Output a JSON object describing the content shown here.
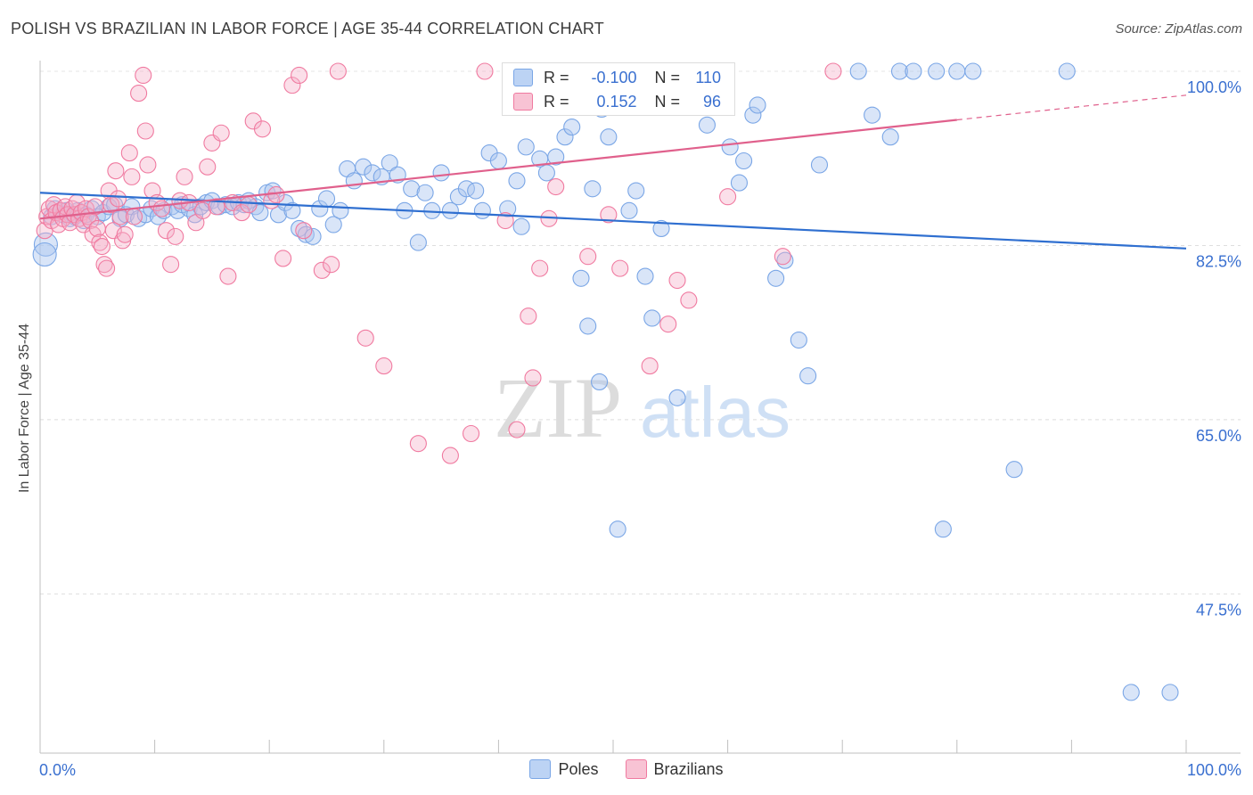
{
  "title": "POLISH VS BRAZILIAN IN LABOR FORCE | AGE 35-44 CORRELATION CHART",
  "source": "Source: ZipAtlas.com",
  "watermark": {
    "zip": "ZIP",
    "atlas": "atlas"
  },
  "legend_box": {
    "rows": [
      {
        "r_label": "R =",
        "r_value": "-0.100",
        "n_label": "N =",
        "n_value": "110",
        "color": "#7aa6e6"
      },
      {
        "r_label": "R =",
        "r_value": "0.152",
        "n_label": "N =",
        "n_value": "96",
        "color": "#f07aa0"
      }
    ]
  },
  "chart_data": {
    "type": "scatter",
    "title": "POLISH VS BRAZILIAN IN LABOR FORCE | AGE 35-44 CORRELATION CHART",
    "xlabel": "",
    "ylabel": "In Labor Force | Age 35-44",
    "xlim": [
      0,
      100
    ],
    "ylim": [
      31.5,
      100
    ],
    "x_tick_labels": [
      "0.0%",
      "100.0%"
    ],
    "y_ticks": [
      100,
      82.5,
      65,
      47.5
    ],
    "y_tick_labels": [
      "100.0%",
      "82.5%",
      "65.0%",
      "47.5%"
    ],
    "grid": true,
    "legend_position": "bottom",
    "series": [
      {
        "name": "Poles",
        "color": "#7aa6e6",
        "line_color": "#2f6fd0",
        "trend": {
          "x": [
            0,
            100
          ],
          "y": [
            87.8,
            82.2
          ],
          "dashed_from": null
        },
        "points": [
          [
            0.5,
            82.6
          ],
          [
            0.4,
            81.6
          ],
          [
            1.0,
            85.4
          ],
          [
            1.3,
            86.2
          ],
          [
            1.8,
            86.0
          ],
          [
            2.0,
            85.6
          ],
          [
            2.3,
            86.0
          ],
          [
            2.6,
            85.2
          ],
          [
            3.0,
            85.4
          ],
          [
            3.3,
            86.0
          ],
          [
            3.8,
            85.0
          ],
          [
            4.0,
            85.6
          ],
          [
            4.5,
            86.2
          ],
          [
            5.0,
            85.4
          ],
          [
            5.5,
            85.8
          ],
          [
            6.0,
            86.4
          ],
          [
            6.5,
            86.6
          ],
          [
            7.0,
            85.2
          ],
          [
            7.5,
            85.6
          ],
          [
            8.0,
            86.4
          ],
          [
            8.6,
            85.2
          ],
          [
            9.2,
            85.6
          ],
          [
            9.7,
            86.2
          ],
          [
            10.3,
            85.4
          ],
          [
            10.8,
            86.0
          ],
          [
            11.5,
            86.4
          ],
          [
            12.0,
            86.0
          ],
          [
            12.4,
            86.6
          ],
          [
            13.0,
            86.2
          ],
          [
            13.5,
            85.6
          ],
          [
            14.0,
            86.4
          ],
          [
            14.5,
            86.8
          ],
          [
            15.0,
            87.0
          ],
          [
            15.6,
            86.4
          ],
          [
            16.2,
            86.6
          ],
          [
            16.8,
            86.4
          ],
          [
            17.3,
            86.8
          ],
          [
            17.8,
            86.6
          ],
          [
            18.2,
            87.0
          ],
          [
            18.8,
            86.4
          ],
          [
            19.2,
            85.8
          ],
          [
            19.8,
            87.8
          ],
          [
            20.3,
            88.0
          ],
          [
            20.8,
            85.6
          ],
          [
            21.4,
            86.8
          ],
          [
            22.0,
            86.0
          ],
          [
            22.6,
            84.2
          ],
          [
            23.2,
            83.6
          ],
          [
            23.8,
            83.4
          ],
          [
            24.4,
            86.2
          ],
          [
            25.0,
            87.2
          ],
          [
            25.6,
            84.6
          ],
          [
            26.2,
            86.0
          ],
          [
            26.8,
            90.2
          ],
          [
            27.4,
            89.0
          ],
          [
            28.2,
            90.4
          ],
          [
            29.0,
            89.8
          ],
          [
            29.8,
            89.4
          ],
          [
            30.5,
            90.8
          ],
          [
            31.2,
            89.6
          ],
          [
            31.8,
            86.0
          ],
          [
            32.4,
            88.2
          ],
          [
            33.0,
            82.8
          ],
          [
            33.6,
            87.8
          ],
          [
            34.2,
            86.0
          ],
          [
            35.0,
            89.8
          ],
          [
            35.8,
            86.0
          ],
          [
            36.5,
            87.4
          ],
          [
            37.2,
            88.2
          ],
          [
            38.0,
            88.0
          ],
          [
            38.6,
            86.0
          ],
          [
            39.2,
            91.8
          ],
          [
            40.0,
            91.0
          ],
          [
            40.8,
            86.2
          ],
          [
            41.6,
            89.0
          ],
          [
            42.0,
            84.4
          ],
          [
            42.4,
            92.4
          ],
          [
            43.6,
            91.2
          ],
          [
            44.2,
            89.8
          ],
          [
            45.0,
            91.4
          ],
          [
            45.8,
            93.4
          ],
          [
            46.4,
            94.4
          ],
          [
            47.2,
            79.2
          ],
          [
            47.8,
            74.4
          ],
          [
            48.2,
            88.2
          ],
          [
            48.8,
            68.8
          ],
          [
            49.0,
            96.2
          ],
          [
            49.6,
            93.4
          ],
          [
            50.4,
            54.0
          ],
          [
            51.4,
            86.0
          ],
          [
            52.0,
            88.0
          ],
          [
            52.8,
            79.4
          ],
          [
            53.4,
            75.2
          ],
          [
            54.2,
            84.2
          ],
          [
            55.6,
            67.2
          ],
          [
            57.0,
            98.0
          ],
          [
            58.2,
            94.6
          ],
          [
            60.2,
            92.4
          ],
          [
            61.0,
            88.8
          ],
          [
            61.4,
            91.0
          ],
          [
            62.2,
            95.6
          ],
          [
            62.6,
            96.6
          ],
          [
            64.2,
            79.2
          ],
          [
            65.0,
            81.0
          ],
          [
            66.2,
            73.0
          ],
          [
            67.0,
            69.4
          ],
          [
            68.0,
            90.6
          ],
          [
            71.4,
            100.0
          ],
          [
            72.6,
            95.6
          ],
          [
            74.2,
            93.4
          ],
          [
            75.0,
            100.0
          ],
          [
            76.2,
            100.0
          ],
          [
            78.2,
            100.0
          ],
          [
            78.8,
            54.0
          ],
          [
            80.0,
            100.0
          ],
          [
            81.4,
            100.0
          ],
          [
            85.0,
            60.0
          ],
          [
            89.6,
            100.0
          ],
          [
            95.2,
            37.6
          ],
          [
            98.6,
            37.6
          ]
        ]
      },
      {
        "name": "Brazilians",
        "color": "#f07aa0",
        "line_color": "#e0608c",
        "trend": {
          "x": [
            0,
            100
          ],
          "y": [
            85.2,
            97.6
          ],
          "dashed_from": 80
        },
        "points": [
          [
            0.4,
            84.0
          ],
          [
            0.6,
            85.4
          ],
          [
            0.8,
            86.2
          ],
          [
            1.0,
            85.0
          ],
          [
            1.2,
            86.6
          ],
          [
            1.4,
            85.8
          ],
          [
            1.6,
            84.6
          ],
          [
            1.8,
            86.0
          ],
          [
            2.0,
            85.2
          ],
          [
            2.2,
            86.4
          ],
          [
            2.4,
            85.6
          ],
          [
            2.6,
            84.8
          ],
          [
            2.8,
            86.2
          ],
          [
            3.0,
            85.6
          ],
          [
            3.2,
            86.8
          ],
          [
            3.4,
            85.2
          ],
          [
            3.6,
            85.8
          ],
          [
            3.8,
            84.6
          ],
          [
            4.0,
            86.2
          ],
          [
            4.2,
            85.4
          ],
          [
            4.4,
            85.0
          ],
          [
            4.6,
            83.6
          ],
          [
            4.8,
            86.4
          ],
          [
            5.0,
            84.2
          ],
          [
            5.2,
            82.8
          ],
          [
            5.4,
            82.4
          ],
          [
            5.6,
            80.6
          ],
          [
            5.8,
            80.2
          ],
          [
            6.0,
            88.0
          ],
          [
            6.2,
            86.6
          ],
          [
            6.4,
            84.0
          ],
          [
            6.6,
            90.0
          ],
          [
            6.8,
            87.2
          ],
          [
            7.0,
            85.4
          ],
          [
            7.2,
            83.0
          ],
          [
            7.4,
            83.6
          ],
          [
            7.8,
            91.8
          ],
          [
            8.0,
            89.4
          ],
          [
            8.2,
            85.4
          ],
          [
            8.6,
            97.8
          ],
          [
            9.0,
            99.6
          ],
          [
            9.2,
            94.0
          ],
          [
            9.4,
            90.6
          ],
          [
            9.8,
            88.0
          ],
          [
            10.2,
            86.8
          ],
          [
            10.6,
            86.2
          ],
          [
            11.0,
            84.0
          ],
          [
            11.4,
            80.6
          ],
          [
            11.8,
            83.4
          ],
          [
            12.2,
            87.0
          ],
          [
            12.6,
            89.4
          ],
          [
            13.0,
            86.8
          ],
          [
            13.6,
            84.8
          ],
          [
            14.2,
            86.0
          ],
          [
            14.6,
            90.4
          ],
          [
            15.0,
            92.8
          ],
          [
            15.4,
            86.4
          ],
          [
            15.8,
            93.8
          ],
          [
            16.4,
            79.4
          ],
          [
            16.8,
            86.8
          ],
          [
            17.6,
            85.8
          ],
          [
            18.2,
            86.6
          ],
          [
            18.6,
            95.0
          ],
          [
            19.4,
            94.2
          ],
          [
            20.2,
            87.0
          ],
          [
            20.6,
            87.6
          ],
          [
            21.2,
            81.2
          ],
          [
            22.0,
            98.6
          ],
          [
            22.6,
            99.6
          ],
          [
            23.0,
            84.0
          ],
          [
            24.6,
            80.0
          ],
          [
            25.4,
            80.6
          ],
          [
            26.0,
            100.0
          ],
          [
            28.4,
            73.2
          ],
          [
            30.0,
            70.4
          ],
          [
            33.0,
            62.6
          ],
          [
            35.8,
            61.4
          ],
          [
            37.6,
            63.6
          ],
          [
            38.8,
            100.0
          ],
          [
            40.6,
            85.0
          ],
          [
            41.6,
            64.0
          ],
          [
            42.6,
            75.4
          ],
          [
            43.0,
            69.2
          ],
          [
            43.6,
            80.2
          ],
          [
            44.4,
            85.2
          ],
          [
            45.0,
            88.4
          ],
          [
            47.8,
            81.4
          ],
          [
            49.6,
            85.6
          ],
          [
            50.6,
            80.2
          ],
          [
            53.2,
            70.4
          ],
          [
            54.8,
            74.6
          ],
          [
            55.6,
            79.0
          ],
          [
            56.6,
            77.0
          ],
          [
            60.0,
            87.4
          ],
          [
            64.8,
            81.4
          ],
          [
            69.2,
            100.0
          ]
        ]
      }
    ]
  }
}
